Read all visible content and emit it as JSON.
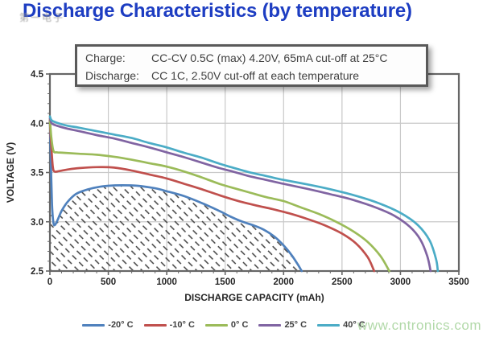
{
  "title": "Discharge Characteristics (by temperature)",
  "watermarks": {
    "overlay_cn": "第一电子",
    "site": "www.cntronics.com",
    "site_color": "#b2d9a9"
  },
  "info_box": {
    "charge_label": "Charge:",
    "charge_value": "CC-CV 0.5C (max) 4.20V, 65mA cut-off at 25°C",
    "discharge_label": "Discharge:",
    "discharge_value": "CC 1C, 2.50V cut-off at each temperature"
  },
  "colors": {
    "title_blue": "#1d3dc2",
    "grid": "#c9c9c9",
    "plot_border": "#666666",
    "tick_text": "#262626",
    "hatch": "#404040"
  },
  "chart_data": {
    "type": "line",
    "xlabel": "DISCHARGE CAPACITY (mAh)",
    "ylabel": "VOLTAGE (V)",
    "xlim": [
      0,
      3500
    ],
    "ylim": [
      2.5,
      4.5
    ],
    "x_ticks": [
      "0",
      "500",
      "1000",
      "1500",
      "2000",
      "2500",
      "3000",
      "3500"
    ],
    "y_ticks": [
      "2.5",
      "3.0",
      "3.5",
      "4.0",
      "4.5"
    ],
    "x_minor_step": 100,
    "y_minor_step": 0.1,
    "grid": true,
    "legend_position": "bottom",
    "hatch_below_series": "-20° C",
    "series": [
      {
        "name": "-20° C",
        "color": "#4F81BD",
        "hatch_below": true,
        "points": [
          [
            0,
            4.03
          ],
          [
            8,
            3.6
          ],
          [
            18,
            3.18
          ],
          [
            30,
            2.99
          ],
          [
            45,
            2.97
          ],
          [
            70,
            3.03
          ],
          [
            100,
            3.11
          ],
          [
            150,
            3.2
          ],
          [
            220,
            3.28
          ],
          [
            300,
            3.32
          ],
          [
            400,
            3.35
          ],
          [
            500,
            3.365
          ],
          [
            620,
            3.37
          ],
          [
            750,
            3.365
          ],
          [
            900,
            3.34
          ],
          [
            1000,
            3.31
          ],
          [
            1150,
            3.26
          ],
          [
            1300,
            3.19
          ],
          [
            1450,
            3.11
          ],
          [
            1550,
            3.05
          ],
          [
            1650,
            3.0
          ],
          [
            1750,
            2.96
          ],
          [
            1830,
            2.92
          ],
          [
            1920,
            2.85
          ],
          [
            2000,
            2.76
          ],
          [
            2070,
            2.66
          ],
          [
            2120,
            2.57
          ],
          [
            2155,
            2.5
          ]
        ]
      },
      {
        "name": "-10° C",
        "color": "#C0504D",
        "hatch_below": false,
        "points": [
          [
            0,
            4.03
          ],
          [
            10,
            3.8
          ],
          [
            25,
            3.56
          ],
          [
            40,
            3.51
          ],
          [
            80,
            3.515
          ],
          [
            150,
            3.53
          ],
          [
            250,
            3.545
          ],
          [
            400,
            3.555
          ],
          [
            550,
            3.55
          ],
          [
            700,
            3.52
          ],
          [
            850,
            3.48
          ],
          [
            1000,
            3.44
          ],
          [
            1150,
            3.385
          ],
          [
            1300,
            3.33
          ],
          [
            1450,
            3.27
          ],
          [
            1600,
            3.215
          ],
          [
            1750,
            3.17
          ],
          [
            1900,
            3.13
          ],
          [
            2050,
            3.085
          ],
          [
            2200,
            3.03
          ],
          [
            2350,
            2.965
          ],
          [
            2500,
            2.88
          ],
          [
            2620,
            2.78
          ],
          [
            2720,
            2.64
          ],
          [
            2775,
            2.5
          ]
        ]
      },
      {
        "name": "0° C",
        "color": "#9BBB59",
        "hatch_below": false,
        "points": [
          [
            0,
            4.04
          ],
          [
            12,
            3.86
          ],
          [
            30,
            3.72
          ],
          [
            60,
            3.705
          ],
          [
            120,
            3.7
          ],
          [
            250,
            3.69
          ],
          [
            400,
            3.68
          ],
          [
            550,
            3.66
          ],
          [
            700,
            3.63
          ],
          [
            850,
            3.595
          ],
          [
            1000,
            3.56
          ],
          [
            1150,
            3.51
          ],
          [
            1300,
            3.45
          ],
          [
            1450,
            3.385
          ],
          [
            1550,
            3.35
          ],
          [
            1700,
            3.3
          ],
          [
            1850,
            3.25
          ],
          [
            2000,
            3.21
          ],
          [
            2150,
            3.145
          ],
          [
            2300,
            3.08
          ],
          [
            2450,
            3.0
          ],
          [
            2600,
            2.9
          ],
          [
            2720,
            2.795
          ],
          [
            2830,
            2.65
          ],
          [
            2905,
            2.5
          ]
        ]
      },
      {
        "name": "25° C",
        "color": "#8064A2",
        "hatch_below": false,
        "points": [
          [
            0,
            4.05
          ],
          [
            15,
            4.0
          ],
          [
            60,
            3.975
          ],
          [
            150,
            3.945
          ],
          [
            250,
            3.92
          ],
          [
            400,
            3.88
          ],
          [
            550,
            3.845
          ],
          [
            700,
            3.8
          ],
          [
            850,
            3.755
          ],
          [
            1000,
            3.705
          ],
          [
            1150,
            3.655
          ],
          [
            1300,
            3.6
          ],
          [
            1450,
            3.545
          ],
          [
            1550,
            3.515
          ],
          [
            1700,
            3.465
          ],
          [
            1850,
            3.425
          ],
          [
            2000,
            3.385
          ],
          [
            2200,
            3.335
          ],
          [
            2400,
            3.28
          ],
          [
            2600,
            3.22
          ],
          [
            2800,
            3.14
          ],
          [
            2950,
            3.06
          ],
          [
            3080,
            2.95
          ],
          [
            3170,
            2.82
          ],
          [
            3230,
            2.65
          ],
          [
            3258,
            2.5
          ]
        ]
      },
      {
        "name": "40° C",
        "color": "#4BACC6",
        "hatch_below": false,
        "points": [
          [
            0,
            4.07
          ],
          [
            15,
            4.03
          ],
          [
            60,
            4.005
          ],
          [
            150,
            3.975
          ],
          [
            250,
            3.955
          ],
          [
            400,
            3.92
          ],
          [
            550,
            3.885
          ],
          [
            700,
            3.85
          ],
          [
            850,
            3.8
          ],
          [
            1000,
            3.755
          ],
          [
            1150,
            3.7
          ],
          [
            1300,
            3.65
          ],
          [
            1450,
            3.59
          ],
          [
            1550,
            3.555
          ],
          [
            1700,
            3.505
          ],
          [
            1850,
            3.465
          ],
          [
            2000,
            3.425
          ],
          [
            2200,
            3.38
          ],
          [
            2400,
            3.33
          ],
          [
            2600,
            3.27
          ],
          [
            2800,
            3.195
          ],
          [
            3000,
            3.09
          ],
          [
            3150,
            2.965
          ],
          [
            3250,
            2.81
          ],
          [
            3305,
            2.62
          ],
          [
            3320,
            2.5
          ]
        ]
      }
    ]
  }
}
